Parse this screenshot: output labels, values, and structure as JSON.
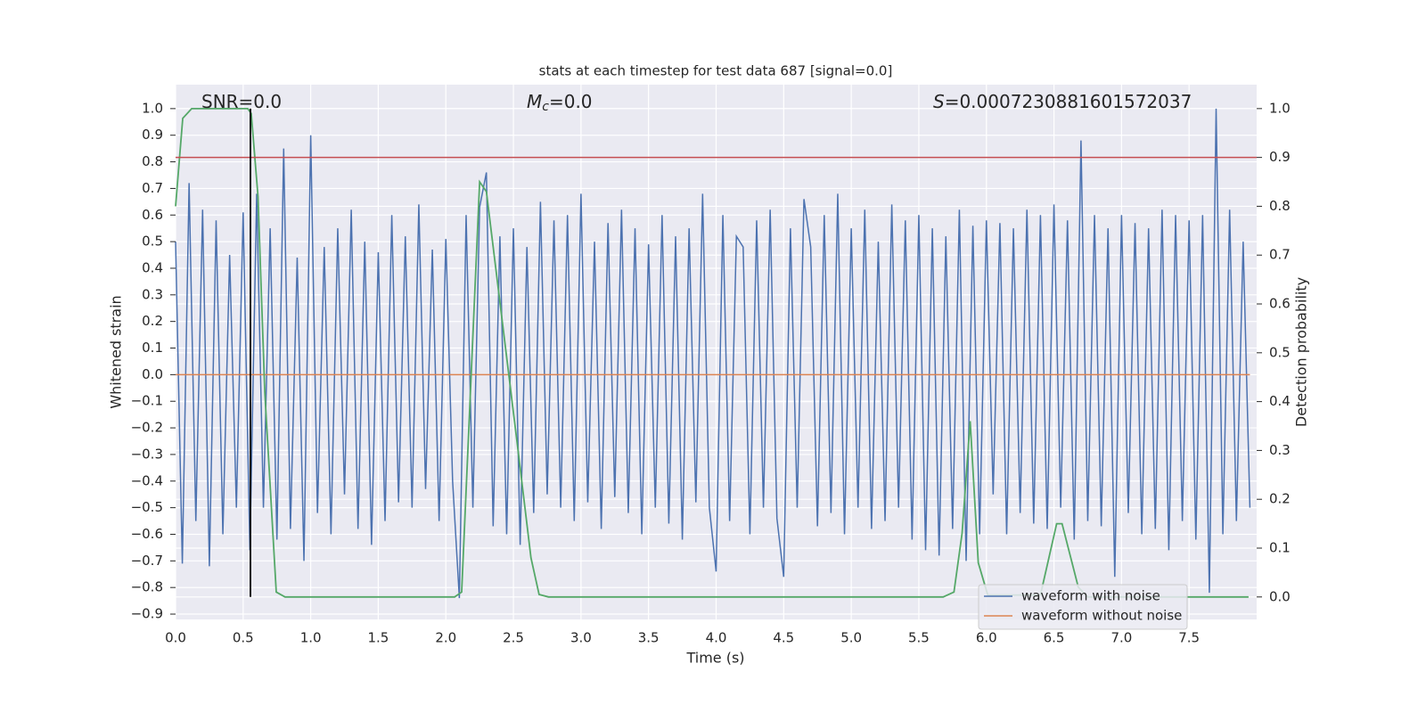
{
  "chart_data": {
    "type": "line",
    "title": "stats at each timestep for test data 687 [signal=0.0]",
    "xlabel": "Time (s)",
    "ylabel": "Whitened strain",
    "y2label": "Detection probability",
    "annotations": [
      [
        "SNR=0.0"
      ],
      [
        "M",
        "c",
        "=0.0"
      ],
      [
        "S",
        "=0.0007230881601572037"
      ]
    ],
    "xlim": [
      0,
      8.0
    ],
    "ylim": [
      -0.92,
      1.09
    ],
    "y2lim": [
      -0.046,
      1.049
    ],
    "xticks": [
      {
        "value": 0,
        "label": "0.0"
      },
      0.5,
      {
        "value": 1,
        "label": "1.0"
      },
      1.5,
      {
        "value": 2,
        "label": "2.0"
      },
      2.5,
      {
        "value": 3,
        "label": "3.0"
      },
      3.5,
      {
        "value": 4,
        "label": "4.0"
      },
      4.5,
      {
        "value": 5,
        "label": "5.0"
      },
      5.5,
      {
        "value": 6,
        "label": "6.0"
      },
      6.5,
      {
        "value": 7,
        "label": "7.0"
      },
      7.5
    ],
    "yticks": [
      {
        "value": 1,
        "label": "1.0"
      },
      0.9,
      0.8,
      0.7,
      0.6,
      0.5,
      0.4,
      0.3,
      0.2,
      0.1,
      {
        "value": 0,
        "label": "0.0"
      },
      {
        "value": -0.1,
        "label": "−0.1"
      },
      {
        "value": -0.2,
        "label": "−0.2"
      },
      {
        "value": -0.3,
        "label": "−0.3"
      },
      {
        "value": -0.4,
        "label": "−0.4"
      },
      {
        "value": -0.5,
        "label": "−0.5"
      },
      {
        "value": -0.6,
        "label": "−0.6"
      },
      {
        "value": -0.7,
        "label": "−0.7"
      },
      {
        "value": -0.8,
        "label": "−0.8"
      },
      {
        "value": -0.9,
        "label": "−0.9"
      }
    ],
    "y2ticks": [
      {
        "value": 1,
        "label": "1.0"
      },
      0.9,
      0.8,
      0.7,
      0.6,
      0.5,
      0.4,
      0.3,
      0.2,
      0.1,
      {
        "value": 0,
        "label": "0.0"
      }
    ],
    "grid": true,
    "legend": "lower right",
    "series": [
      {
        "name": "waveform with noise",
        "color": "#4c72b0",
        "x": [
          0,
          0.05,
          0.1,
          0.15,
          0.2,
          0.25,
          0.3,
          0.35,
          0.4,
          0.45,
          0.5,
          0.55,
          0.6,
          0.65,
          0.7,
          0.75,
          0.8,
          0.85,
          0.9,
          0.95,
          1,
          1.05,
          1.1,
          1.15,
          1.2,
          1.25,
          1.3,
          1.35,
          1.4,
          1.45,
          1.5,
          1.55,
          1.6,
          1.65,
          1.7,
          1.75,
          1.8,
          1.85,
          1.9,
          1.95,
          2,
          2.05,
          2.1,
          2.15,
          2.2,
          2.25,
          2.3,
          2.35,
          2.4,
          2.45,
          2.5,
          2.55,
          2.6,
          2.65,
          2.7,
          2.75,
          2.8,
          2.85,
          2.9,
          2.95,
          3,
          3.05,
          3.1,
          3.15,
          3.2,
          3.25,
          3.3,
          3.35,
          3.4,
          3.45,
          3.5,
          3.55,
          3.6,
          3.65,
          3.7,
          3.75,
          3.8,
          3.85,
          3.9,
          3.95,
          4,
          4.05,
          4.1,
          4.15,
          4.2,
          4.25,
          4.3,
          4.35,
          4.4,
          4.45,
          4.5,
          4.55,
          4.6,
          4.65,
          4.7,
          4.75,
          4.8,
          4.85,
          4.9,
          4.95,
          5,
          5.05,
          5.1,
          5.15,
          5.2,
          5.25,
          5.3,
          5.35,
          5.4,
          5.45,
          5.5,
          5.55,
          5.6,
          5.65,
          5.7,
          5.75,
          5.8,
          5.85,
          5.9,
          5.95,
          6,
          6.05,
          6.1,
          6.15,
          6.2,
          6.25,
          6.3,
          6.35,
          6.4,
          6.45,
          6.5,
          6.55,
          6.6,
          6.65,
          6.7,
          6.75,
          6.8,
          6.85,
          6.9,
          6.95,
          7,
          7.05,
          7.1,
          7.15,
          7.2,
          7.25,
          7.3,
          7.35,
          7.4,
          7.45,
          7.5,
          7.55,
          7.6,
          7.65,
          7.7,
          7.75,
          7.8,
          7.85,
          7.9,
          7.95
        ],
        "values": [
          0.5,
          -0.71,
          0.72,
          -0.55,
          0.62,
          -0.72,
          0.58,
          -0.6,
          0.45,
          -0.5,
          0.61,
          -0.66,
          0.68,
          -0.5,
          0.55,
          -0.62,
          0.85,
          -0.58,
          0.44,
          -0.7,
          0.9,
          -0.52,
          0.48,
          -0.6,
          0.55,
          -0.45,
          0.62,
          -0.58,
          0.5,
          -0.64,
          0.46,
          -0.55,
          0.6,
          -0.48,
          0.52,
          -0.5,
          0.64,
          -0.43,
          0.47,
          -0.55,
          0.51,
          -0.4,
          -0.84,
          0.6,
          -0.5,
          0.63,
          0.76,
          -0.57,
          0.52,
          -0.6,
          0.55,
          -0.64,
          0.48,
          -0.52,
          0.65,
          -0.45,
          0.58,
          -0.5,
          0.6,
          -0.55,
          0.68,
          -0.48,
          0.5,
          -0.58,
          0.57,
          -0.46,
          0.62,
          -0.52,
          0.55,
          -0.6,
          0.49,
          -0.5,
          0.6,
          -0.56,
          0.52,
          -0.62,
          0.55,
          -0.48,
          0.68,
          -0.5,
          -0.74,
          0.6,
          -0.55,
          0.52,
          0.48,
          -0.6,
          0.58,
          -0.5,
          0.62,
          -0.54,
          -0.76,
          0.55,
          -0.5,
          0.66,
          0.48,
          -0.57,
          0.6,
          -0.52,
          0.68,
          -0.6,
          0.55,
          -0.5,
          0.62,
          -0.58,
          0.5,
          -0.55,
          0.64,
          -0.5,
          0.58,
          -0.62,
          0.6,
          -0.66,
          0.55,
          -0.68,
          0.52,
          -0.58,
          0.62,
          -0.7,
          0.56,
          -0.6,
          0.58,
          -0.45,
          0.57,
          -0.6,
          0.55,
          -0.52,
          0.62,
          -0.56,
          0.6,
          -0.58,
          0.64,
          -0.5,
          0.58,
          -0.62,
          0.88,
          -0.55,
          0.6,
          -0.57,
          0.55,
          -0.76,
          0.6,
          -0.52,
          0.57,
          -0.6,
          0.55,
          -0.58,
          0.62,
          -0.66,
          0.6,
          -0.55,
          0.58,
          -0.62,
          0.6,
          -0.82,
          1.0,
          -0.6,
          0.62,
          -0.55,
          0.5,
          -0.5
        ]
      },
      {
        "name": "waveform without noise",
        "color": "#dd8452",
        "x": [
          0,
          7.95
        ],
        "values": [
          0,
          0
        ]
      }
    ],
    "y2_series": {
      "color": "#55a868",
      "x": [
        0,
        0.053,
        0.119,
        0.534,
        0.56,
        0.61,
        0.66,
        0.745,
        0.81,
        2.065,
        2.117,
        2.25,
        2.3,
        2.53,
        2.63,
        2.69,
        2.76,
        5.68,
        5.76,
        5.82,
        5.88,
        5.94,
        6.01,
        6.4,
        6.52,
        6.56,
        6.68,
        6.75,
        7.94
      ],
      "values": [
        0.8,
        0.98,
        1.0,
        1.0,
        0.99,
        0.82,
        0.42,
        0.01,
        0,
        0,
        0.01,
        0.85,
        0.83,
        0.31,
        0.08,
        0.005,
        0,
        0,
        0.01,
        0.13,
        0.36,
        0.07,
        0.004,
        0.004,
        0.15,
        0.15,
        0.02,
        0,
        0
      ]
    },
    "hline": {
      "value": 0.9,
      "axis": "y2",
      "color": "#c44e52"
    },
    "vline": {
      "x": 0.554,
      "ymin": 0,
      "ymax": 1,
      "axis": "y2",
      "color": "#000000"
    }
  }
}
